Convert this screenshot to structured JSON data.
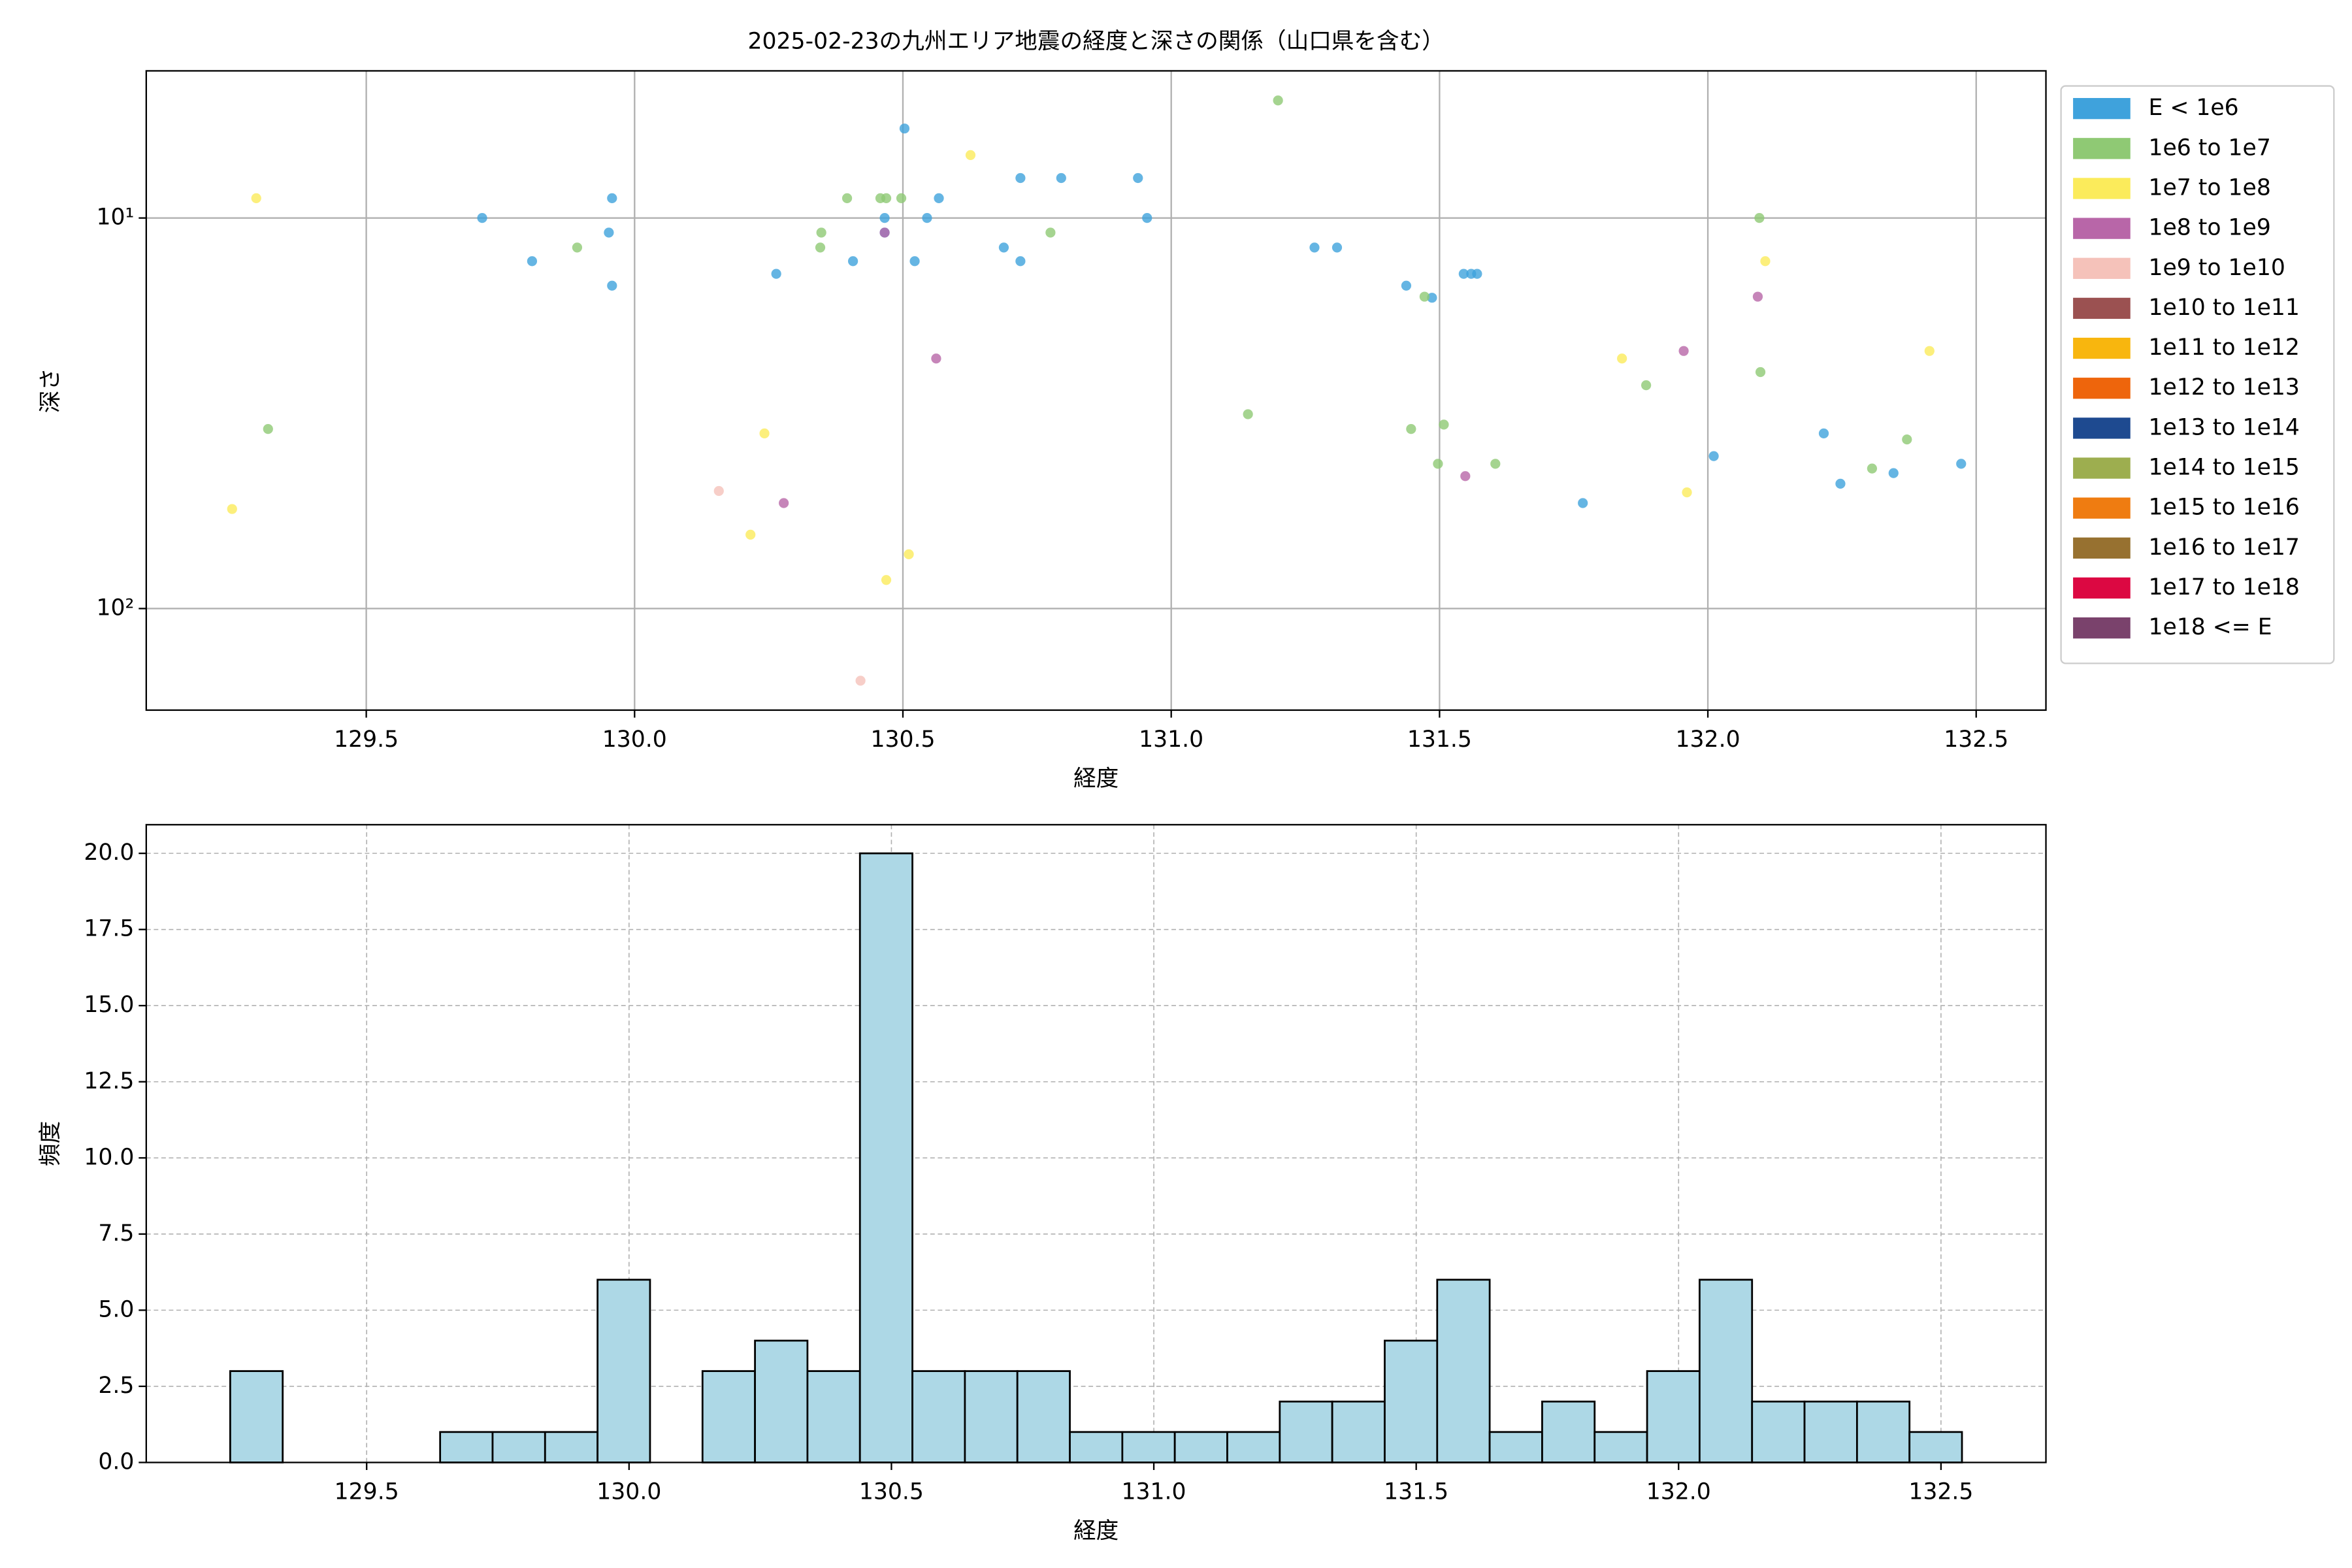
{
  "chart_data": [
    {
      "type": "scatter",
      "title": "2025-02-23の九州エリア地震の経度と深さの関係（山口県を含む）",
      "xlabel": "経度",
      "ylabel": "深さ",
      "xlim": [
        129.09,
        132.63
      ],
      "xticks": [
        129.5,
        {
          "value": 130.0,
          "label": "130.0"
        },
        130.5,
        {
          "value": 131.0,
          "label": "131.0"
        },
        131.5,
        {
          "value": 132.0,
          "label": "132.0"
        },
        132.5
      ],
      "ylim": [
        4.2,
        182
      ],
      "ylog": true,
      "y_inverted": true,
      "yticks": [
        {
          "value": 10,
          "label": "10¹"
        },
        {
          "value": 100,
          "label": "10²"
        }
      ],
      "grid": true,
      "grid_style": "solid",
      "legend": "outside upper right",
      "series": [
        {
          "name": "E < 1e6",
          "color": "#3fa2dc",
          "x": [
            129.716,
            129.809,
            129.952,
            129.958,
            129.958,
            130.264,
            130.407,
            130.466,
            130.466,
            130.503,
            130.522,
            130.545,
            130.567,
            130.688,
            130.719,
            130.719,
            130.795,
            130.938,
            130.955,
            131.267,
            131.309,
            131.438,
            131.486,
            131.545,
            131.559,
            131.57,
            131.767,
            132.011,
            132.216,
            132.247,
            132.346,
            132.472
          ],
          "y": [
            10,
            12.9,
            10.9,
            8.9,
            14.9,
            13.9,
            12.9,
            10,
            10.9,
            5.9,
            12.9,
            10,
            8.9,
            11.9,
            7.9,
            12.9,
            7.9,
            7.9,
            10,
            11.9,
            11.9,
            14.9,
            16.0,
            13.9,
            13.9,
            13.9,
            53.7,
            40.7,
            35.6,
            47.9,
            45,
            42.6
          ]
        },
        {
          "name": "1e6 to 1e7",
          "color": "#8fc974",
          "x": [
            129.893,
            129.317,
            130.348,
            130.346,
            130.396,
            130.458,
            130.469,
            130.497,
            130.775,
            131.199,
            131.143,
            131.447,
            131.472,
            131.508,
            131.497,
            131.604,
            131.885,
            132.096,
            132.098,
            132.306,
            132.371
          ],
          "y": [
            11.9,
            34.7,
            10.9,
            11.9,
            8.9,
            8.9,
            8.9,
            8.9,
            10.9,
            5.0,
            31.8,
            34.7,
            15.9,
            33.8,
            42.6,
            42.6,
            26.8,
            10,
            24.8,
            43.8,
            36.9
          ]
        },
        {
          "name": "1e7 to 1e8",
          "color": "#fbeb5b",
          "x": [
            129.295,
            129.25,
            130.242,
            130.216,
            130.626,
            130.511,
            130.469,
            131.84,
            131.961,
            132.107,
            132.413
          ],
          "y": [
            8.9,
            55.6,
            35.6,
            64.7,
            6.9,
            72.6,
            84.5,
            22.9,
            50.4,
            12.9,
            21.9
          ]
        },
        {
          "name": "1e8 to 1e9",
          "color": "#b866a8",
          "x": [
            130.466,
            130.562,
            130.278,
            131.955,
            131.548,
            132.093
          ],
          "y": [
            10.9,
            22.9,
            53.7,
            21.9,
            45.8,
            15.9
          ]
        },
        {
          "name": "1e9 to 1e10",
          "color": "#f5c2ba",
          "x": [
            130.157,
            130.421
          ],
          "y": [
            50,
            153
          ]
        },
        {
          "name": "1e10 to 1e11",
          "color": "#9b5151",
          "x": [],
          "y": []
        },
        {
          "name": "1e11 to 1e12",
          "color": "#f8b60e",
          "x": [],
          "y": []
        },
        {
          "name": "1e12 to 1e13",
          "color": "#ee650c",
          "x": [],
          "y": []
        },
        {
          "name": "1e13 to 1e14",
          "color": "#1e4a90",
          "x": [],
          "y": []
        },
        {
          "name": "1e14 to 1e15",
          "color": "#9dae4f",
          "x": [],
          "y": []
        },
        {
          "name": "1e15 to 1e16",
          "color": "#ef7c11",
          "x": [],
          "y": []
        },
        {
          "name": "1e16 to 1e17",
          "color": "#977130",
          "x": [],
          "y": []
        },
        {
          "name": "1e17 to 1e18",
          "color": "#dc0842",
          "x": [],
          "y": []
        },
        {
          "name": "1e18 <= E",
          "color": "#7a426c",
          "x": [],
          "y": []
        }
      ]
    },
    {
      "type": "histogram",
      "xlabel": "経度",
      "ylabel": "頻度",
      "xlim": [
        129.08,
        132.7
      ],
      "xticks": [
        129.5,
        {
          "value": 130.0,
          "label": "130.0"
        },
        130.5,
        {
          "value": 131.0,
          "label": "131.0"
        },
        131.5,
        {
          "value": 132.0,
          "label": "132.0"
        },
        132.5
      ],
      "ylim": [
        0,
        20.94
      ],
      "yticks": [
        {
          "value": 0,
          "label": "0.0"
        },
        2.5,
        {
          "value": 5,
          "label": "5.0"
        },
        7.5,
        {
          "value": 10,
          "label": "10.0"
        },
        12.5,
        {
          "value": 15,
          "label": "15.0"
        },
        17.5,
        {
          "value": 20,
          "label": "20.0"
        }
      ],
      "grid": true,
      "grid_style": "dashed",
      "color": "#add8e6",
      "edgecolor": "#000000",
      "bins": [
        129.24,
        129.34,
        129.44,
        129.54,
        129.64,
        129.74,
        129.84,
        129.94,
        130.04,
        130.14,
        130.24,
        130.34,
        130.44,
        130.54,
        130.64,
        130.74,
        130.84,
        130.94,
        131.04,
        131.14,
        131.24,
        131.34,
        131.44,
        131.54,
        131.64,
        131.74,
        131.84,
        131.94,
        132.04,
        132.14,
        132.24,
        132.34,
        132.44,
        132.54
      ],
      "counts": [
        3,
        0,
        0,
        0,
        1,
        1,
        1,
        6,
        0,
        3,
        4,
        3,
        20,
        3,
        3,
        3,
        1,
        1,
        1,
        1,
        2,
        2,
        4,
        6,
        1,
        2,
        1,
        3,
        6,
        2,
        2,
        2,
        1
      ]
    }
  ]
}
